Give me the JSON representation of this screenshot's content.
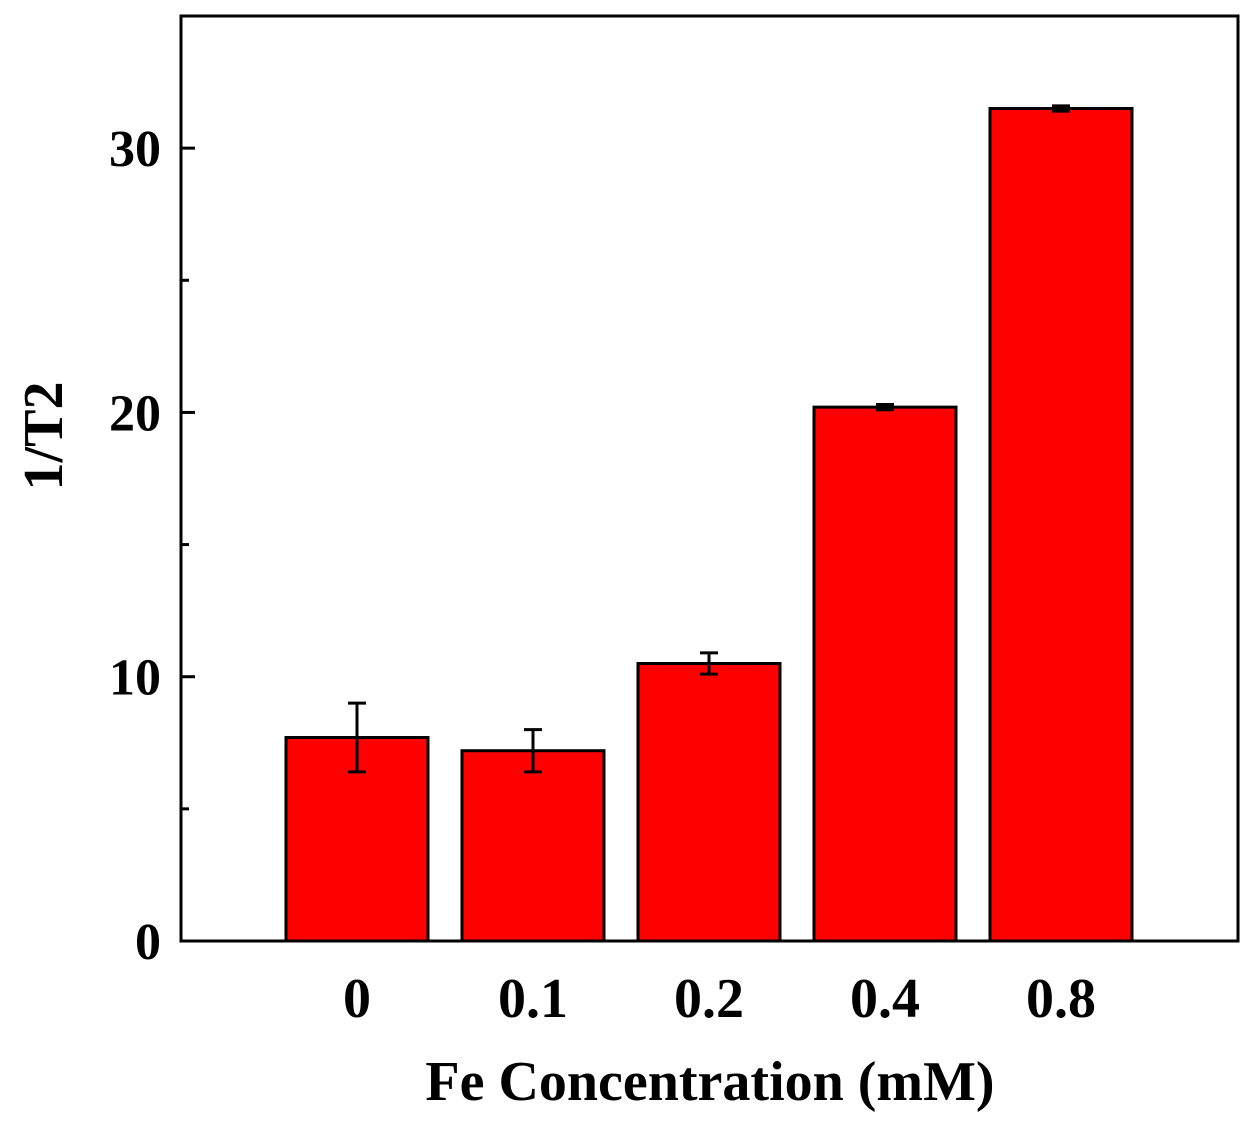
{
  "chart_data": {
    "type": "bar",
    "title": "",
    "xlabel": "Fe Concentration (mM)",
    "ylabel": "1/T2",
    "categories": [
      "0",
      "0.1",
      "0.2",
      "0.4",
      "0.8"
    ],
    "series": [
      {
        "values": [
          7.7,
          7.2,
          10.5,
          20.2,
          31.5
        ],
        "errors": [
          1.3,
          0.8,
          0.4,
          0.1,
          0.1
        ]
      }
    ],
    "ylim": [
      0,
      35
    ],
    "yticks_major": [
      0,
      10,
      20,
      30
    ],
    "yticks_minor": [
      5,
      15,
      25
    ],
    "grid": false,
    "legend": "none",
    "colors": {
      "bar_fill": "#ff0000",
      "bar_stroke": "#000000",
      "axis": "#000000",
      "error_bar": "#000000"
    }
  }
}
